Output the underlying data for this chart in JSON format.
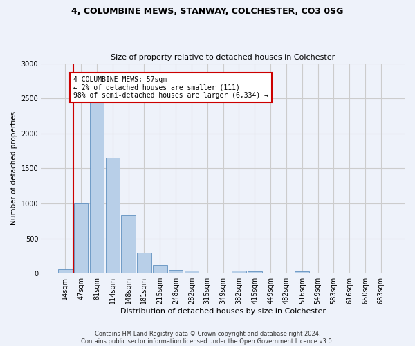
{
  "title_line1": "4, COLUMBINE MEWS, STANWAY, COLCHESTER, CO3 0SG",
  "title_line2": "Size of property relative to detached houses in Colchester",
  "xlabel": "Distribution of detached houses by size in Colchester",
  "ylabel": "Number of detached properties",
  "bar_labels": [
    "14sqm",
    "47sqm",
    "81sqm",
    "114sqm",
    "148sqm",
    "181sqm",
    "215sqm",
    "248sqm",
    "282sqm",
    "315sqm",
    "349sqm",
    "382sqm",
    "415sqm",
    "449sqm",
    "482sqm",
    "516sqm",
    "549sqm",
    "583sqm",
    "616sqm",
    "650sqm",
    "683sqm"
  ],
  "bar_values": [
    60,
    1000,
    2450,
    1650,
    830,
    300,
    120,
    55,
    45,
    0,
    0,
    45,
    30,
    0,
    0,
    35,
    0,
    0,
    0,
    0,
    0
  ],
  "bar_color": "#b8cfe8",
  "bar_edge_color": "#6090c0",
  "annotation_box_text": "4 COLUMBINE MEWS: 57sqm\n← 2% of detached houses are smaller (111)\n98% of semi-detached houses are larger (6,334) →",
  "vline_color": "#cc0000",
  "box_edge_color": "#cc0000",
  "ylim": [
    0,
    3000
  ],
  "yticks": [
    0,
    500,
    1000,
    1500,
    2000,
    2500,
    3000
  ],
  "grid_color": "#cccccc",
  "footnote": "Contains HM Land Registry data © Crown copyright and database right 2024.\nContains public sector information licensed under the Open Government Licence v3.0.",
  "bg_color": "#eef2fa"
}
